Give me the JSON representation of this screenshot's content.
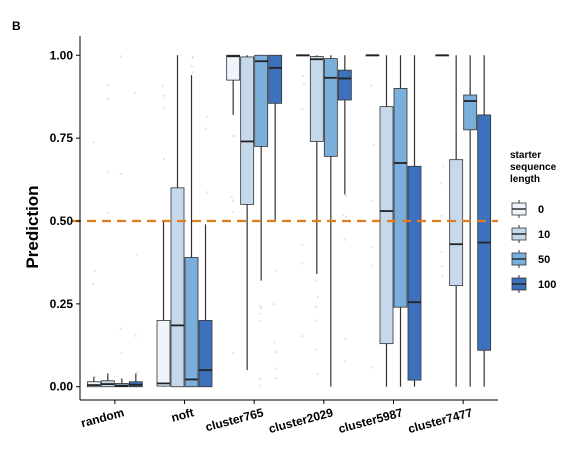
{
  "chart_data": {
    "type": "box",
    "panel_label": "B",
    "ylabel": "Prediction",
    "xlabel": "",
    "ylim": [
      -0.04,
      1.04
    ],
    "yticks": [
      "0.00",
      "0.25",
      "0.50",
      "0.75",
      "1.00"
    ],
    "ytick_values": [
      0,
      0.25,
      0.5,
      0.75,
      1.0
    ],
    "categories": [
      "random",
      "noft",
      "cluster765",
      "cluster2029",
      "cluster5987",
      "cluster7477"
    ],
    "threshold": {
      "value": 0.5,
      "color": "#e07b20",
      "style": "dashed"
    },
    "legend": {
      "title_lines": [
        "starter",
        "sequence",
        "length"
      ],
      "placement": "right"
    },
    "series": [
      {
        "name": "0",
        "color": "#eff3fb",
        "boxes": [
          {
            "lower": 0.0,
            "q1": 0.0,
            "median": 0.005,
            "q3": 0.015,
            "upper": 0.03
          },
          {
            "lower": 0.0,
            "q1": 0.002,
            "median": 0.01,
            "q3": 0.2,
            "upper": 0.5
          },
          {
            "lower": 0.82,
            "q1": 0.925,
            "median": 0.997,
            "q3": 1.0,
            "upper": 1.0
          },
          {
            "lower": 1.0,
            "q1": 1.0,
            "median": 1.0,
            "q3": 1.0,
            "upper": 1.0
          },
          {
            "lower": 1.0,
            "q1": 1.0,
            "median": 1.0,
            "q3": 1.0,
            "upper": 1.0
          },
          {
            "lower": 1.0,
            "q1": 1.0,
            "median": 1.0,
            "q3": 1.0,
            "upper": 1.0
          }
        ]
      },
      {
        "name": "10",
        "color": "#c6d8ec",
        "boxes": [
          {
            "lower": 0.0,
            "q1": 0.0,
            "median": 0.008,
            "q3": 0.018,
            "upper": 0.04
          },
          {
            "lower": 0.0,
            "q1": 0.0,
            "median": 0.185,
            "q3": 0.6,
            "upper": 1.0
          },
          {
            "lower": 0.05,
            "q1": 0.55,
            "median": 0.74,
            "q3": 0.995,
            "upper": 1.0
          },
          {
            "lower": 0.34,
            "q1": 0.74,
            "median": 0.988,
            "q3": 0.996,
            "upper": 1.0
          },
          {
            "lower": 0.0,
            "q1": 0.13,
            "median": 0.53,
            "q3": 0.845,
            "upper": 1.0
          },
          {
            "lower": 0.0,
            "q1": 0.305,
            "median": 0.43,
            "q3": 0.685,
            "upper": 1.0
          }
        ]
      },
      {
        "name": "50",
        "color": "#7aaedb",
        "boxes": [
          {
            "lower": 0.0,
            "q1": 0.0,
            "median": 0.003,
            "q3": 0.01,
            "upper": 0.025
          },
          {
            "lower": 0.0,
            "q1": 0.0,
            "median": 0.022,
            "q3": 0.39,
            "upper": 0.94
          },
          {
            "lower": 0.32,
            "q1": 0.725,
            "median": 0.982,
            "q3": 1.0,
            "upper": 1.0
          },
          {
            "lower": 0.0,
            "q1": 0.695,
            "median": 0.932,
            "q3": 0.99,
            "upper": 1.0
          },
          {
            "lower": 0.0,
            "q1": 0.24,
            "median": 0.675,
            "q3": 0.9,
            "upper": 1.0
          },
          {
            "lower": 0.0,
            "q1": 0.775,
            "median": 0.862,
            "q3": 0.88,
            "upper": 1.0
          }
        ]
      },
      {
        "name": "100",
        "color": "#3d71bd",
        "boxes": [
          {
            "lower": 0.0,
            "q1": 0.0,
            "median": 0.006,
            "q3": 0.015,
            "upper": 0.04
          },
          {
            "lower": 0.0,
            "q1": 0.0,
            "median": 0.05,
            "q3": 0.2,
            "upper": 0.49
          },
          {
            "lower": 0.5,
            "q1": 0.855,
            "median": 0.962,
            "q3": 1.0,
            "upper": 1.0
          },
          {
            "lower": 0.58,
            "q1": 0.865,
            "median": 0.93,
            "q3": 0.955,
            "upper": 1.0
          },
          {
            "lower": 0.0,
            "q1": 0.02,
            "median": 0.255,
            "q3": 0.665,
            "upper": 1.0
          },
          {
            "lower": 0.0,
            "q1": 0.11,
            "median": 0.435,
            "q3": 0.82,
            "upper": 1.0
          }
        ]
      }
    ]
  }
}
